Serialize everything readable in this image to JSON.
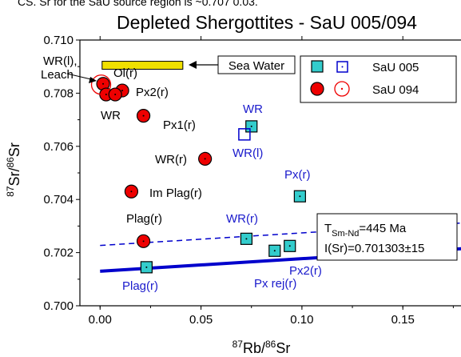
{
  "header_snippet": "CS.   Sr for the SaU source region is ~0.707 0.03.",
  "chart_data": {
    "type": "scatter",
    "title": "Depleted Shergottites - SaU 005/094",
    "xlabel_sup": "87",
    "xlabel_base": "Rb/",
    "xlabel_sup2": "86",
    "xlabel_end": "Sr",
    "ylabel_sup": "87",
    "ylabel_base": "Sr/",
    "ylabel_sup2": "86",
    "ylabel_end": "Sr",
    "xlim": [
      -0.01,
      0.18
    ],
    "ylim": [
      0.7,
      0.71
    ],
    "x_ticks": [
      0.0,
      0.05,
      0.1,
      0.15
    ],
    "x_tick_labels": [
      "0.00",
      "0.05",
      "0.10",
      "0.15"
    ],
    "y_ticks": [
      0.7,
      0.702,
      0.704,
      0.706,
      0.708,
      0.71
    ],
    "y_tick_labels": [
      "0.700",
      "0.702",
      "0.704",
      "0.706",
      "0.708",
      "0.710"
    ],
    "grid": false,
    "legend_position": "top-right",
    "legend": {
      "entry1": "SaU 005",
      "entry2": "SaU 094"
    },
    "series": [
      {
        "name": "SaU 005",
        "marker": "filled-square",
        "color": "#33cccc",
        "points": [
          {
            "x": 0.023,
            "y": 0.70145,
            "label": "Plag(r)"
          },
          {
            "x": 0.0725,
            "y": 0.70252,
            "label": "WR(r)"
          },
          {
            "x": 0.075,
            "y": 0.70675,
            "label": "WR"
          },
          {
            "x": 0.0865,
            "y": 0.70207,
            "label": "Px rej(r)"
          },
          {
            "x": 0.094,
            "y": 0.70225,
            "label": "Px2(r)"
          },
          {
            "x": 0.099,
            "y": 0.70412,
            "label": "Px(r)"
          }
        ]
      },
      {
        "name": "SaU 005 leach",
        "marker": "open-square",
        "color": "#0000cc",
        "points": [
          {
            "x": 0.0715,
            "y": 0.70645,
            "label": "WR(l)"
          }
        ]
      },
      {
        "name": "SaU 094",
        "marker": "filled-circle",
        "color": "#ee0000",
        "points": [
          {
            "x": 0.0015,
            "y": 0.70835,
            "label": ""
          },
          {
            "x": 0.003,
            "y": 0.70795,
            "label": "WR"
          },
          {
            "x": 0.011,
            "y": 0.7081,
            "label": "Px2(r)"
          },
          {
            "x": 0.0075,
            "y": 0.70795,
            "label": "Ol(r)"
          },
          {
            "x": 0.0215,
            "y": 0.70715,
            "label": "Px1(r)"
          },
          {
            "x": 0.052,
            "y": 0.70553,
            "label": "WR(r)"
          },
          {
            "x": 0.0155,
            "y": 0.7043,
            "label": "Im Plag(r)"
          },
          {
            "x": 0.0215,
            "y": 0.70243,
            "label": "Plag(r)"
          }
        ]
      },
      {
        "name": "SaU 094 leach",
        "marker": "open-circle",
        "color": "#ee0000",
        "points": [
          {
            "x": 0.0005,
            "y": 0.70832,
            "label": "WR(l), Leach"
          }
        ]
      }
    ],
    "lines": [
      {
        "name": "isochron-solid",
        "style": "solid",
        "color": "#0000cc",
        "x": [
          0.0,
          0.18
        ],
        "y": [
          0.7013,
          0.70215
        ]
      },
      {
        "name": "isochron-dashed",
        "style": "dashed",
        "color": "#0000cc",
        "x": [
          0.0,
          0.18
        ],
        "y": [
          0.70227,
          0.70312
        ]
      }
    ],
    "sea_water": {
      "label": "Sea Water",
      "x_range": [
        0.001,
        0.041
      ],
      "y_range": [
        0.7089,
        0.7092
      ],
      "color": "#f0e000"
    },
    "age_box": {
      "line1_main": "T",
      "line1_sub": "Sm-Nd",
      "line1_rest": "=445 Ma",
      "line2": "I(Sr)=0.701303±15"
    },
    "annotations": {
      "wr_leach_label_1": "WR(l),",
      "wr_leach_label_2": "Leach",
      "ol": "Ol(r)",
      "px2_094": "Px2(r)",
      "wr_094": "WR",
      "px1_094": "Px1(r)",
      "wrr_094": "WR(r)",
      "implag_094": "Im Plag(r)",
      "plag_094": "Plag(r)",
      "wr_005": "WR",
      "wrl_005": "WR(l)",
      "pxr_005": "Px(r)",
      "wrr_005": "WR(r)",
      "px2_005": "Px2(r)",
      "pxrej_005": "Px rej(r)",
      "plag_005": "Plag(r)"
    }
  }
}
